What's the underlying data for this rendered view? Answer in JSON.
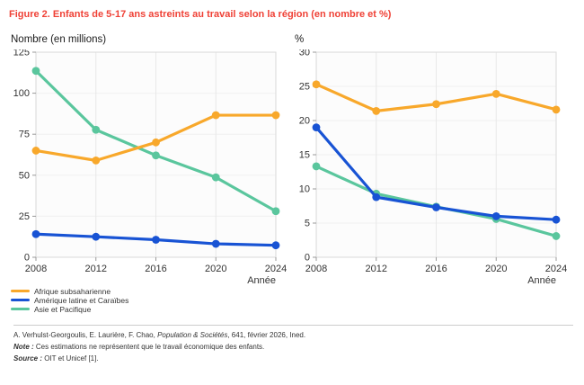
{
  "figure": {
    "title": "Figure 2. Enfants de 5-17 ans astreints au travail selon la région (en nombre et %)",
    "title_color": "#ef4136"
  },
  "chart_data": [
    {
      "type": "line",
      "axis_title": "Nombre (en millions)",
      "xlabel": "Année",
      "x": [
        2008,
        2012,
        2016,
        2020,
        2024
      ],
      "ylim": [
        0,
        125
      ],
      "yticks": [
        0,
        25,
        50,
        75,
        100,
        125
      ],
      "grid": true,
      "series": [
        {
          "name": "Afrique subsaharienne",
          "color": "#f8a82b",
          "values": [
            65,
            59,
            70,
            86.6,
            86.6
          ]
        },
        {
          "name": "Amérique latine et Caraïbes",
          "color": "#1853d4",
          "values": [
            14.1,
            12.5,
            10.7,
            8.2,
            7.3
          ]
        },
        {
          "name": "Asie et Pacifique",
          "color": "#5ac69d",
          "values": [
            113.6,
            77.7,
            62.1,
            48.7,
            28.1
          ]
        }
      ]
    },
    {
      "type": "line",
      "axis_title": "%",
      "xlabel": "Année",
      "x": [
        2008,
        2012,
        2016,
        2020,
        2024
      ],
      "ylim": [
        0,
        30
      ],
      "yticks": [
        0,
        5,
        10,
        15,
        20,
        25,
        30
      ],
      "grid": true,
      "series": [
        {
          "name": "Afrique subsaharienne",
          "color": "#f8a82b",
          "values": [
            25.3,
            21.4,
            22.4,
            23.9,
            21.6
          ]
        },
        {
          "name": "Amérique latine et Caraïbes",
          "color": "#1853d4",
          "values": [
            19.0,
            8.8,
            7.3,
            6.0,
            5.5
          ]
        },
        {
          "name": "Asie et Pacifique",
          "color": "#5ac69d",
          "values": [
            13.3,
            9.3,
            7.4,
            5.6,
            3.1
          ]
        }
      ]
    }
  ],
  "legend": {
    "items": [
      {
        "label": "Afrique subsaharienne",
        "color": "#f8a82b"
      },
      {
        "label": "Amérique latine et Caraïbes",
        "color": "#1853d4"
      },
      {
        "label": "Asie et Pacifique",
        "color": "#5ac69d"
      }
    ]
  },
  "footer": {
    "ref_pre": "A. Verhulst-Georgoulis, E. Laurière, F. Chao, ",
    "ref_italic": "Population & Sociétés",
    "ref_post": ", 641, février 2026, Ined.",
    "note_label": "Note : ",
    "note_text": "Ces estimations ne représentent que le travail économique des enfants.",
    "source_label": "Source : ",
    "source_text": "OIT et Unicef [1]."
  }
}
